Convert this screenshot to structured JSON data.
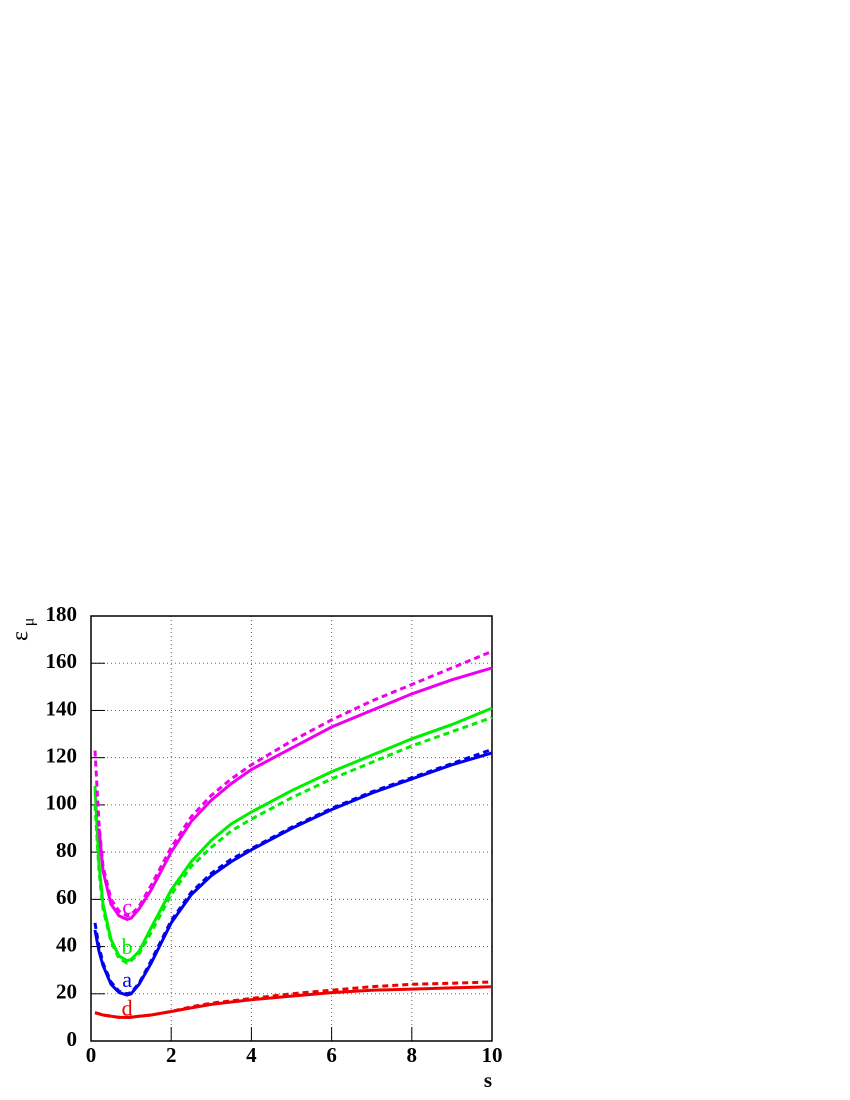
{
  "chart_data": {
    "type": "line",
    "xlabel": "s",
    "ylabel": "ε",
    "ylabel_subscript": "μ",
    "x": [
      0.1,
      0.2,
      0.3,
      0.5,
      0.7,
      0.9,
      1.0,
      1.2,
      1.5,
      2,
      2.5,
      3,
      3.5,
      4,
      5,
      6,
      7,
      8,
      9,
      10
    ],
    "series": [
      {
        "color": "#0000ee",
        "dash": false,
        "values": [
          47,
          38,
          32,
          24,
          20.5,
          19.5,
          20,
          24,
          33,
          50,
          62,
          70,
          76,
          81,
          90,
          98,
          105,
          111,
          117,
          122
        ]
      },
      {
        "color": "#0000ee",
        "dash": true,
        "values": [
          50,
          40,
          33,
          25,
          21,
          20,
          20.5,
          24.5,
          34,
          51,
          63,
          71,
          77,
          81.5,
          90.5,
          98.5,
          105.5,
          111.5,
          117.5,
          123.5
        ]
      },
      {
        "color": "#00ee00",
        "dash": false,
        "values": [
          108,
          75,
          58,
          43,
          36,
          34,
          34.5,
          38,
          48,
          64,
          76,
          85,
          92,
          97,
          106,
          114,
          121,
          128,
          134,
          141
        ]
      },
      {
        "color": "#00ee00",
        "dash": true,
        "values": [
          100,
          72,
          56,
          42,
          35,
          33,
          34,
          37,
          46,
          62,
          74,
          82,
          89,
          94,
          103,
          111,
          118,
          125,
          131,
          137
        ]
      },
      {
        "color": "#ee00ee",
        "dash": false,
        "values": [
          null,
          90,
          72,
          58,
          53,
          51.5,
          52,
          56,
          64,
          80,
          93,
          102,
          109,
          115,
          124,
          133,
          140,
          147,
          153,
          158
        ]
      },
      {
        "color": "#ee00ee",
        "dash": true,
        "values": [
          123,
          92,
          74,
          60,
          55,
          53,
          53.5,
          57,
          66,
          82,
          95,
          104,
          111,
          117,
          127,
          136,
          144,
          151,
          158,
          165
        ]
      },
      {
        "color": "#ee0000",
        "dash": false,
        "values": [
          12,
          11.5,
          11,
          10.5,
          10,
          10,
          10,
          10.5,
          11,
          12.5,
          14,
          15.5,
          16.5,
          17.5,
          19,
          20.5,
          21.5,
          22,
          22.5,
          23
        ]
      },
      {
        "color": "#ee0000",
        "dash": true,
        "values": [
          12,
          11.5,
          11,
          10.5,
          10,
          10,
          10,
          10.5,
          11,
          12.5,
          14.5,
          16,
          17,
          18,
          20,
          21.5,
          23,
          24,
          24.5,
          25
        ]
      }
    ],
    "annotations": [
      {
        "text": "a",
        "x": 0.9,
        "y": 25,
        "color": "#0000ee"
      },
      {
        "text": "b",
        "x": 0.9,
        "y": 39,
        "color": "#00ee00"
      },
      {
        "text": "c",
        "x": 0.9,
        "y": 56,
        "color": "#ee00ee"
      },
      {
        "text": "d",
        "x": 0.9,
        "y": 13,
        "color": "#ee0000"
      }
    ],
    "xlim": [
      0,
      10
    ],
    "xticks": [
      0,
      2,
      4,
      6,
      8,
      10
    ],
    "ylim": [
      0,
      180
    ],
    "yticks": [
      0,
      20,
      40,
      60,
      80,
      100,
      120,
      140,
      160,
      180
    ],
    "grid": true
  }
}
